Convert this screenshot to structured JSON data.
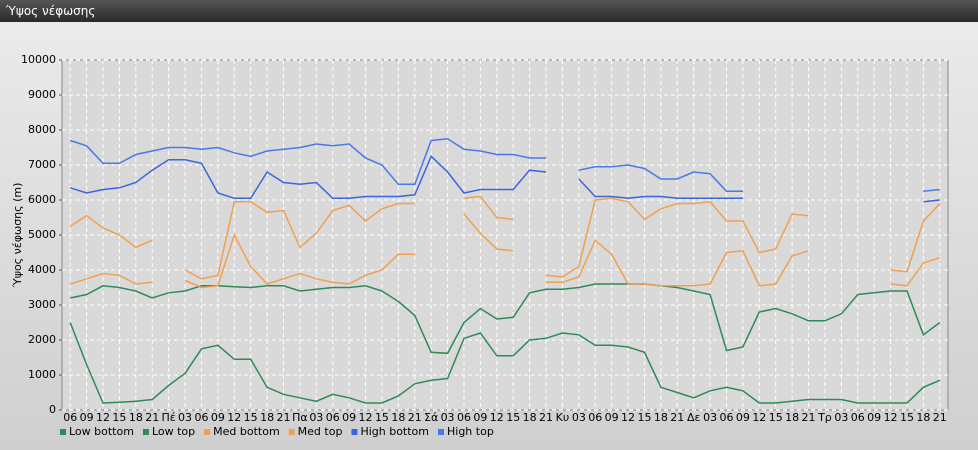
{
  "chart_data": {
    "type": "line",
    "title": "Ύψος νέφωσης",
    "y_label": "Ύψος νέφωσης (m)",
    "categories": [
      "06",
      "09",
      "12",
      "15",
      "18",
      "21",
      "Πέ",
      "03",
      "06",
      "09",
      "12",
      "15",
      "18",
      "21",
      "Πα",
      "03",
      "06",
      "09",
      "12",
      "15",
      "18",
      "21",
      "Σά",
      "03",
      "06",
      "09",
      "12",
      "15",
      "18",
      "21",
      "Κυ",
      "03",
      "06",
      "09",
      "12",
      "15",
      "18",
      "21",
      "Δε",
      "03",
      "06",
      "09",
      "12",
      "15",
      "18",
      "21",
      "Τρ",
      "03",
      "06",
      "09",
      "12",
      "15",
      "18",
      "21"
    ],
    "ylim": [
      0,
      10000
    ],
    "yticks": [
      0,
      1000,
      2000,
      3000,
      4000,
      5000,
      6000,
      7000,
      8000,
      9000,
      10000
    ],
    "grid": true,
    "series": [
      {
        "name": "Low bottom",
        "color": "#2e8b57",
        "values": [
          2500,
          1300,
          200,
          220,
          250,
          300,
          700,
          1050,
          1750,
          1850,
          1450,
          1450,
          650,
          450,
          350,
          250,
          450,
          350,
          200,
          200,
          400,
          750,
          850,
          900,
          2050,
          2200,
          1550,
          1550,
          2000,
          2050,
          2200,
          2150,
          1850,
          1850,
          1800,
          1650,
          650,
          500,
          350,
          550,
          650,
          550,
          200,
          200,
          250,
          300,
          300,
          300,
          200,
          200,
          200,
          200,
          650,
          850
        ]
      },
      {
        "name": "Low top",
        "color": "#2e8b57",
        "values": [
          3200,
          3300,
          3550,
          3500,
          3400,
          3200,
          3350,
          3400,
          3550,
          3550,
          3520,
          3500,
          3550,
          3550,
          3400,
          3450,
          3500,
          3500,
          3550,
          3400,
          3100,
          2700,
          1650,
          1620,
          2500,
          2900,
          2600,
          2650,
          3350,
          3450,
          3450,
          3500,
          3600,
          3600,
          3600,
          3600,
          3550,
          3500,
          3400,
          3300,
          1700,
          1800,
          2800,
          2900,
          2750,
          2550,
          2550,
          2750,
          3300,
          3350,
          3400,
          3400,
          2150,
          2500
        ]
      },
      {
        "name": "Med bottom",
        "color": "#f0a050",
        "values": [
          3600,
          3750,
          3900,
          3850,
          3600,
          3650,
          null,
          3700,
          3500,
          3550,
          5000,
          4100,
          3600,
          3750,
          3900,
          3750,
          3650,
          3600,
          3850,
          4000,
          4450,
          4450,
          null,
          null,
          5600,
          5050,
          4600,
          4550,
          null,
          3650,
          3650,
          3800,
          4850,
          4450,
          3600,
          3600,
          3550,
          3550,
          3550,
          3600,
          4500,
          4550,
          3550,
          3600,
          4400,
          4550,
          null,
          null,
          null,
          null,
          3600,
          3550,
          4200,
          4350
        ]
      },
      {
        "name": "Med top",
        "color": "#f0a050",
        "values": [
          5250,
          5550,
          5200,
          5000,
          4650,
          4850,
          null,
          4000,
          3750,
          3850,
          5950,
          5950,
          5650,
          5700,
          4650,
          5050,
          5700,
          5850,
          5400,
          5750,
          5900,
          5900,
          null,
          null,
          6050,
          6100,
          5500,
          5450,
          null,
          3850,
          3800,
          4100,
          6000,
          6050,
          5950,
          5450,
          5750,
          5900,
          5900,
          5950,
          5400,
          5400,
          4500,
          4600,
          5600,
          5550,
          null,
          null,
          null,
          null,
          4000,
          3950,
          5400,
          5900
        ]
      },
      {
        "name": "High bottom",
        "color": "#3c64dc",
        "values": [
          6350,
          6200,
          6300,
          6350,
          6500,
          6850,
          7150,
          7150,
          7050,
          6200,
          6050,
          6050,
          6800,
          6500,
          6450,
          6500,
          6050,
          6050,
          6100,
          6100,
          6100,
          6150,
          7250,
          6800,
          6200,
          6300,
          6300,
          6300,
          6850,
          6800,
          null,
          6600,
          6100,
          6100,
          6050,
          6100,
          6100,
          6050,
          6050,
          6050,
          6050,
          6050,
          null,
          null,
          null,
          null,
          null,
          null,
          null,
          null,
          null,
          null,
          5950,
          6000
        ]
      },
      {
        "name": "High top",
        "color": "#4a78e8",
        "values": [
          7700,
          7550,
          7050,
          7050,
          7300,
          7400,
          7500,
          7500,
          7450,
          7500,
          7350,
          7250,
          7400,
          7450,
          7500,
          7600,
          7550,
          7600,
          7200,
          7000,
          6450,
          6450,
          7700,
          7750,
          7450,
          7400,
          7300,
          7300,
          7200,
          7200,
          null,
          6850,
          6950,
          6950,
          7000,
          6900,
          6600,
          6600,
          6800,
          6750,
          6250,
          6250,
          null,
          null,
          null,
          null,
          null,
          null,
          null,
          null,
          null,
          null,
          6250,
          6300
        ]
      }
    ]
  }
}
